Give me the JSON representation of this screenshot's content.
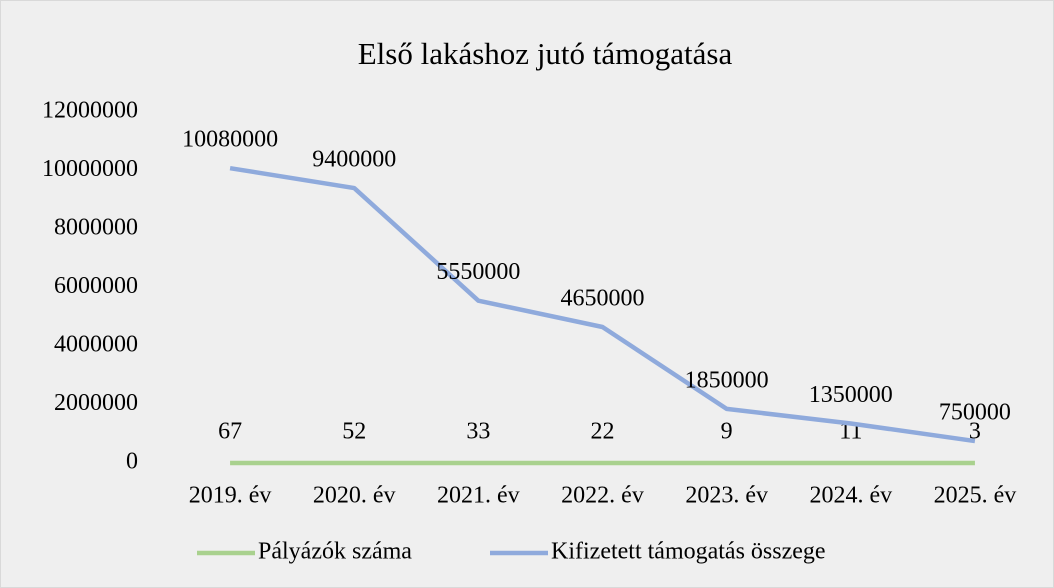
{
  "chart_data": {
    "type": "line",
    "title": "Első lakáshoz jutó támogatása",
    "categories": [
      "2019. év",
      "2020. év",
      "2021. év",
      "2022. év",
      "2023. év",
      "2024. év",
      "2025. év"
    ],
    "series": [
      {
        "name": "Pályázók száma",
        "color": "#a9d18e",
        "values": [
          67,
          52,
          33,
          22,
          9,
          11,
          3
        ]
      },
      {
        "name": "Kifizetett támogatás összege",
        "color": "#8faadc",
        "values": [
          10080000,
          9400000,
          5550000,
          4650000,
          1850000,
          1350000,
          750000
        ]
      }
    ],
    "ylim": [
      0,
      12000000
    ],
    "yticks": [
      0,
      2000000,
      4000000,
      6000000,
      8000000,
      10000000,
      12000000
    ],
    "grid": false,
    "legend": "bottom"
  }
}
